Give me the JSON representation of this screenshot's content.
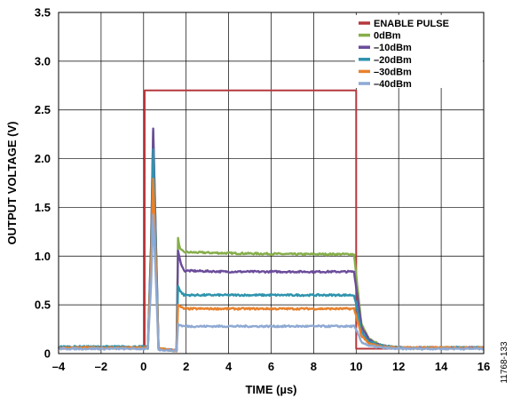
{
  "chart_data": {
    "type": "line",
    "xlabel": "TIME (µs)",
    "ylabel": "OUTPUT VOLTAGE (V)",
    "xlim": [
      -4,
      16
    ],
    "ylim": [
      0,
      3.5
    ],
    "x_ticks": [
      -4,
      -2,
      0,
      2,
      4,
      6,
      8,
      10,
      12,
      14,
      16
    ],
    "x_tick_labels": [
      "–4",
      "–2",
      "0",
      "2",
      "4",
      "6",
      "8",
      "10",
      "12",
      "14",
      "16"
    ],
    "y_ticks": [
      0,
      0.5,
      1.0,
      1.5,
      2.0,
      2.5,
      3.0,
      3.5
    ],
    "y_tick_labels": [
      "0",
      "0.5",
      "1.0",
      "1.5",
      "2.0",
      "2.5",
      "3.0",
      "3.5"
    ],
    "grid": true,
    "legend_position": "top-right",
    "figure_id": "11768-133",
    "series": [
      {
        "name": "ENABLE PULSE",
        "color": "#b5383c",
        "points": [
          [
            -4,
            0.05
          ],
          [
            0.05,
            0.05
          ],
          [
            0.05,
            2.7
          ],
          [
            10.0,
            2.7
          ],
          [
            10.0,
            0.05
          ],
          [
            16,
            0.05
          ]
        ]
      },
      {
        "name": "0dBm",
        "color": "#86ae4a",
        "points": [
          [
            -4,
            0.06
          ],
          [
            0.2,
            0.06
          ],
          [
            0.35,
            1.1
          ],
          [
            0.45,
            2.28
          ],
          [
            0.55,
            1.4
          ],
          [
            0.7,
            0.05
          ],
          [
            1.55,
            0.03
          ],
          [
            1.62,
            1.18
          ],
          [
            1.72,
            1.07
          ],
          [
            1.9,
            1.04
          ],
          [
            4,
            1.03
          ],
          [
            7,
            1.02
          ],
          [
            9.9,
            1.02
          ],
          [
            10.05,
            0.7
          ],
          [
            10.25,
            0.3
          ],
          [
            10.6,
            0.15
          ],
          [
            11.2,
            0.08
          ],
          [
            12,
            0.06
          ],
          [
            16,
            0.06
          ]
        ]
      },
      {
        "name": "–10dBm",
        "color": "#6b4c9a",
        "points": [
          [
            -4,
            0.06
          ],
          [
            0.2,
            0.06
          ],
          [
            0.35,
            1.1
          ],
          [
            0.45,
            2.3
          ],
          [
            0.55,
            1.4
          ],
          [
            0.7,
            0.05
          ],
          [
            1.55,
            0.03
          ],
          [
            1.62,
            1.05
          ],
          [
            1.72,
            0.95
          ],
          [
            1.9,
            0.85
          ],
          [
            4,
            0.84
          ],
          [
            7,
            0.84
          ],
          [
            9.9,
            0.84
          ],
          [
            10.05,
            0.6
          ],
          [
            10.25,
            0.28
          ],
          [
            10.6,
            0.14
          ],
          [
            11.2,
            0.08
          ],
          [
            12,
            0.06
          ],
          [
            16,
            0.06
          ]
        ]
      },
      {
        "name": "–20dBm",
        "color": "#2e93ad",
        "points": [
          [
            -4,
            0.07
          ],
          [
            0.2,
            0.07
          ],
          [
            0.35,
            1.0
          ],
          [
            0.45,
            2.1
          ],
          [
            0.55,
            1.3
          ],
          [
            0.7,
            0.05
          ],
          [
            1.55,
            0.03
          ],
          [
            1.62,
            0.7
          ],
          [
            1.72,
            0.64
          ],
          [
            1.9,
            0.6
          ],
          [
            4,
            0.6
          ],
          [
            7,
            0.6
          ],
          [
            9.9,
            0.6
          ],
          [
            10.05,
            0.45
          ],
          [
            10.25,
            0.22
          ],
          [
            10.6,
            0.12
          ],
          [
            11.2,
            0.08
          ],
          [
            12,
            0.06
          ],
          [
            16,
            0.06
          ]
        ]
      },
      {
        "name": "–30dBm",
        "color": "#e8812c",
        "points": [
          [
            -4,
            0.06
          ],
          [
            0.2,
            0.06
          ],
          [
            0.35,
            0.9
          ],
          [
            0.45,
            1.8
          ],
          [
            0.55,
            1.1
          ],
          [
            0.7,
            0.05
          ],
          [
            1.55,
            0.03
          ],
          [
            1.62,
            0.5
          ],
          [
            1.72,
            0.48
          ],
          [
            1.9,
            0.46
          ],
          [
            4,
            0.46
          ],
          [
            7,
            0.46
          ],
          [
            9.9,
            0.46
          ],
          [
            10.05,
            0.35
          ],
          [
            10.25,
            0.18
          ],
          [
            10.6,
            0.1
          ],
          [
            11.2,
            0.07
          ],
          [
            12,
            0.06
          ],
          [
            16,
            0.06
          ]
        ]
      },
      {
        "name": "–40dBm",
        "color": "#8ea9d3",
        "points": [
          [
            -4,
            0.05
          ],
          [
            0.2,
            0.05
          ],
          [
            0.35,
            0.7
          ],
          [
            0.45,
            1.42
          ],
          [
            0.55,
            0.9
          ],
          [
            0.7,
            0.04
          ],
          [
            1.55,
            0.03
          ],
          [
            1.62,
            0.3
          ],
          [
            1.72,
            0.29
          ],
          [
            1.9,
            0.28
          ],
          [
            4,
            0.28
          ],
          [
            7,
            0.28
          ],
          [
            9.9,
            0.28
          ],
          [
            10.05,
            0.22
          ],
          [
            10.25,
            0.12
          ],
          [
            10.6,
            0.08
          ],
          [
            11.2,
            0.06
          ],
          [
            12,
            0.05
          ],
          [
            16,
            0.05
          ]
        ]
      }
    ]
  }
}
